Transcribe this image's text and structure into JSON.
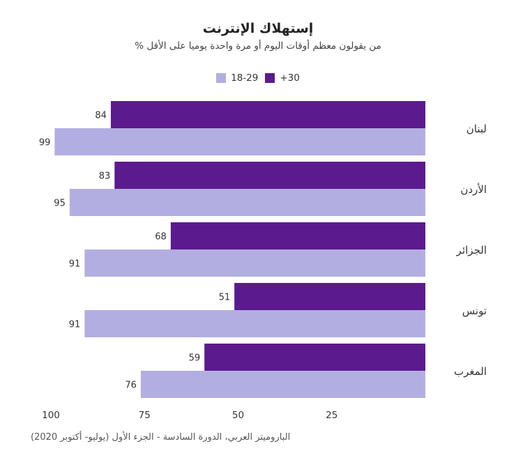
{
  "title": "إستهلاك الإنترنت",
  "subtitle": "من يقولون معظم أوقات اليوم أو مرة واحدة يوميا على الأقل %",
  "source": "الباروميتر العربي، الدورة السادسة - الجزء الأول (يوليو- أكتوبر 2020)",
  "chart_data": {
    "type": "bar",
    "orientation": "horizontal",
    "x_direction": "reversed",
    "categories": [
      "لبنان",
      "الأردن",
      "الجزائر",
      "تونس",
      "المغرب"
    ],
    "series": [
      {
        "name": "+30",
        "color": "#5b1a8e",
        "values": [
          84,
          83,
          68,
          51,
          59
        ]
      },
      {
        "name": "18-29",
        "color": "#b3aee1",
        "values": [
          99,
          95,
          91,
          91,
          76
        ]
      }
    ],
    "xlim": [
      0,
      100
    ],
    "xticks": [
      100,
      75,
      50,
      25
    ],
    "legend_position": "top-center",
    "grid": false
  }
}
